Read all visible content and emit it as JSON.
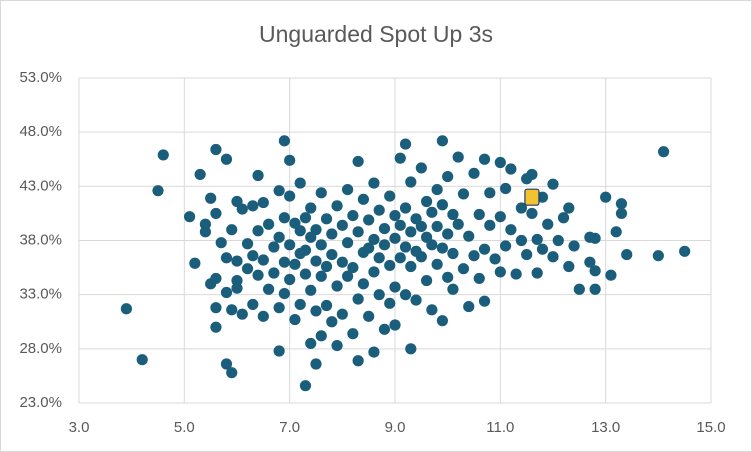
{
  "chart_data": {
    "type": "scatter",
    "title": "Unguarded Spot Up 3s",
    "color": "#1b5e7b",
    "grid": true,
    "xlim": [
      3,
      15
    ],
    "xticks": [
      {
        "value": 3,
        "label": "3.0"
      },
      {
        "value": 5,
        "label": "5.0"
      },
      {
        "value": 7,
        "label": "7.0"
      },
      {
        "value": 9,
        "label": "9.0"
      },
      {
        "value": 11,
        "label": "11.0"
      },
      {
        "value": 13,
        "label": "13.0"
      },
      {
        "value": 15,
        "label": "15.0"
      }
    ],
    "ylim": [
      23,
      53
    ],
    "yticks": [
      {
        "value": 23,
        "label": "23.0%"
      },
      {
        "value": 28,
        "label": "28.0%"
      },
      {
        "value": 33,
        "label": "33.0%"
      },
      {
        "value": 38,
        "label": "38.0%"
      },
      {
        "value": 43,
        "label": "43.0%"
      },
      {
        "value": 48,
        "label": "48.0%"
      },
      {
        "value": 53,
        "label": "53.0%"
      }
    ],
    "x": [
      3.9,
      4.2,
      4.5,
      4.6,
      5.1,
      5.2,
      5.3,
      5.4,
      5.4,
      5.5,
      5.5,
      5.6,
      5.6,
      5.6,
      5.6,
      5.6,
      5.7,
      5.8,
      5.8,
      5.8,
      5.8,
      5.9,
      5.9,
      5.9,
      6.0,
      6.0,
      6.0,
      6.0,
      6.1,
      6.1,
      6.2,
      6.2,
      6.3,
      6.3,
      6.3,
      6.4,
      6.4,
      6.4,
      6.5,
      6.5,
      6.5,
      6.6,
      6.6,
      6.7,
      6.7,
      6.8,
      6.8,
      6.8,
      6.8,
      6.9,
      6.9,
      6.9,
      6.9,
      7.0,
      7.0,
      7.0,
      7.0,
      7.1,
      7.1,
      7.1,
      7.2,
      7.2,
      7.2,
      7.2,
      7.3,
      7.3,
      7.3,
      7.3,
      7.4,
      7.4,
      7.4,
      7.4,
      7.5,
      7.5,
      7.5,
      7.5,
      7.6,
      7.6,
      7.6,
      7.6,
      7.7,
      7.7,
      7.7,
      7.8,
      7.8,
      7.8,
      7.9,
      7.9,
      7.9,
      8.0,
      8.0,
      8.0,
      8.1,
      8.1,
      8.1,
      8.2,
      8.2,
      8.2,
      8.3,
      8.3,
      8.3,
      8.3,
      8.4,
      8.4,
      8.4,
      8.5,
      8.5,
      8.5,
      8.6,
      8.6,
      8.6,
      8.6,
      8.7,
      8.7,
      8.7,
      8.8,
      8.8,
      8.8,
      8.9,
      8.9,
      8.9,
      9.0,
      9.0,
      9.0,
      9.0,
      9.1,
      9.1,
      9.1,
      9.2,
      9.2,
      9.2,
      9.2,
      9.3,
      9.3,
      9.3,
      9.3,
      9.4,
      9.4,
      9.4,
      9.5,
      9.5,
      9.5,
      9.6,
      9.6,
      9.6,
      9.7,
      9.7,
      9.7,
      9.8,
      9.8,
      9.8,
      9.9,
      9.9,
      9.9,
      9.9,
      10.0,
      10.0,
      10.0,
      10.1,
      10.1,
      10.1,
      10.2,
      10.2,
      10.3,
      10.3,
      10.4,
      10.4,
      10.5,
      10.5,
      10.6,
      10.6,
      10.7,
      10.7,
      10.7,
      10.8,
      10.8,
      10.9,
      11.0,
      11.0,
      11.0,
      11.1,
      11.1,
      11.2,
      11.2,
      11.3,
      11.4,
      11.4,
      11.5,
      11.5,
      11.6,
      11.6,
      11.7,
      11.7,
      11.8,
      11.8,
      11.9,
      12.0,
      12.0,
      12.1,
      12.2,
      12.3,
      12.3,
      12.4,
      12.5,
      12.7,
      12.7,
      12.8,
      12.8,
      12.8,
      13.0,
      13.1,
      13.2,
      13.3,
      13.3,
      13.4,
      14.0,
      14.1,
      14.5
    ],
    "y": [
      31.7,
      27.0,
      42.6,
      45.9,
      40.2,
      35.9,
      44.1,
      39.5,
      38.8,
      41.9,
      34.0,
      46.4,
      31.8,
      30.0,
      40.5,
      34.5,
      37.8,
      45.5,
      36.4,
      33.2,
      26.6,
      25.8,
      39.0,
      31.6,
      41.6,
      36.1,
      33.6,
      34.3,
      31.2,
      40.9,
      37.7,
      35.4,
      41.2,
      32.1,
      36.6,
      44.0,
      38.9,
      34.8,
      41.5,
      36.2,
      31.0,
      39.5,
      33.5,
      37.4,
      35.0,
      42.6,
      38.3,
      31.8,
      27.8,
      47.2,
      40.1,
      36.0,
      33.1,
      45.4,
      42.1,
      37.6,
      34.4,
      39.6,
      35.8,
      30.7,
      43.3,
      38.9,
      36.8,
      32.1,
      24.6,
      40.1,
      37.1,
      34.9,
      41.0,
      38.3,
      33.4,
      28.5,
      39.0,
      36.1,
      31.5,
      26.6,
      42.4,
      37.6,
      34.7,
      29.2,
      40.0,
      35.6,
      32.0,
      38.6,
      36.7,
      30.5,
      41.2,
      33.8,
      28.3,
      39.4,
      36.0,
      31.2,
      42.7,
      37.8,
      34.7,
      40.3,
      35.5,
      29.4,
      45.3,
      38.8,
      32.6,
      26.9,
      41.8,
      36.9,
      34.0,
      39.9,
      37.3,
      31.0,
      43.3,
      38.1,
      35.1,
      27.7,
      40.8,
      36.4,
      33.0,
      39.1,
      37.6,
      29.8,
      42.1,
      35.7,
      32.2,
      40.3,
      38.2,
      33.7,
      30.2,
      45.6,
      39.4,
      36.4,
      46.9,
      41.0,
      37.4,
      33.0,
      43.4,
      38.8,
      35.6,
      28.0,
      40.0,
      37.0,
      32.5,
      44.7,
      39.3,
      36.5,
      41.6,
      38.3,
      34.3,
      40.6,
      37.6,
      31.6,
      42.7,
      39.3,
      35.8,
      47.2,
      41.3,
      37.3,
      30.6,
      43.9,
      38.6,
      34.6,
      40.4,
      36.8,
      33.5,
      45.7,
      39.5,
      42.3,
      35.4,
      38.4,
      31.9,
      44.2,
      36.6,
      40.4,
      34.5,
      45.5,
      37.2,
      32.4,
      42.4,
      39.4,
      36.3,
      45.2,
      40.2,
      35.1,
      42.8,
      37.5,
      44.6,
      39.0,
      34.9,
      41.0,
      38.0,
      43.7,
      36.7,
      44.1,
      40.5,
      38.1,
      35.0,
      42.0,
      37.2,
      39.5,
      43.2,
      36.5,
      38.0,
      40.1,
      35.6,
      41.0,
      37.5,
      33.5,
      38.3,
      36.0,
      35.2,
      33.5,
      38.2,
      42.0,
      34.8,
      38.8,
      41.4,
      40.5,
      36.7,
      36.6,
      46.2,
      37.0
    ],
    "highlight": {
      "x": 11.6,
      "y": 42.0,
      "color": "#f2c230"
    }
  }
}
